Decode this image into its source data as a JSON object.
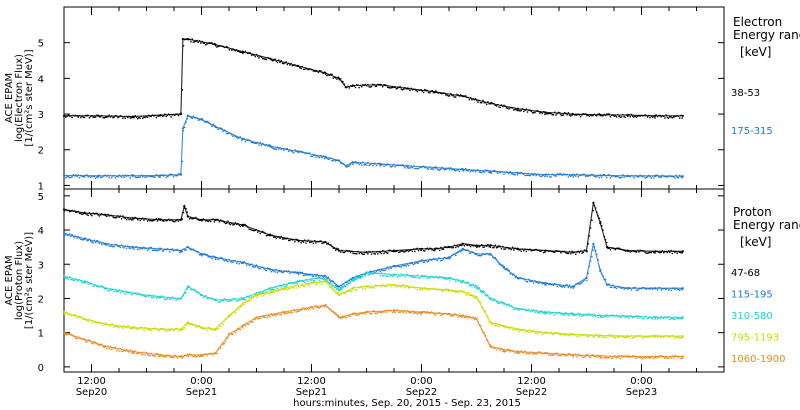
{
  "chart_data": [
    {
      "type": "scatter",
      "panel": "electron",
      "ylabel_lines": [
        "ACE EPAM",
        "log(Electron Flux)",
        "[1/(cm²s ster MeV)]"
      ],
      "ylim": [
        0.9,
        6.0
      ],
      "yticks": [
        1,
        2,
        3,
        4,
        5
      ],
      "legend_title_lines": [
        "Electron",
        "Energy range"
      ],
      "legend_unit": "[keV]",
      "series": [
        {
          "name": "38-53",
          "color": "#000000",
          "points": [
            [
              0,
              2.95
            ],
            [
              5,
              2.95
            ],
            [
              10,
              2.93
            ],
            [
              14,
              2.97
            ],
            [
              17,
              3.0
            ],
            [
              17.3,
              5.1
            ],
            [
              18,
              5.1
            ],
            [
              22,
              4.95
            ],
            [
              26,
              4.75
            ],
            [
              30,
              4.55
            ],
            [
              34,
              4.35
            ],
            [
              38,
              4.15
            ],
            [
              40,
              4.0
            ],
            [
              41,
              3.75
            ],
            [
              42,
              3.8
            ],
            [
              46,
              3.82
            ],
            [
              50,
              3.72
            ],
            [
              54,
              3.62
            ],
            [
              58,
              3.5
            ],
            [
              62,
              3.3
            ],
            [
              66,
              3.15
            ],
            [
              70,
              3.05
            ],
            [
              74,
              3.0
            ],
            [
              78,
              2.98
            ],
            [
              82,
              2.97
            ],
            [
              86,
              2.95
            ],
            [
              90,
              2.95
            ]
          ]
        },
        {
          "name": "175-315",
          "color": "#1f78d1",
          "points": [
            [
              0,
              1.28
            ],
            [
              5,
              1.27
            ],
            [
              10,
              1.27
            ],
            [
              14,
              1.28
            ],
            [
              17,
              1.3
            ],
            [
              17.3,
              2.6
            ],
            [
              18,
              2.95
            ],
            [
              20,
              2.85
            ],
            [
              22,
              2.65
            ],
            [
              26,
              2.3
            ],
            [
              30,
              2.1
            ],
            [
              34,
              1.95
            ],
            [
              38,
              1.8
            ],
            [
              40,
              1.7
            ],
            [
              41,
              1.55
            ],
            [
              42,
              1.65
            ],
            [
              46,
              1.6
            ],
            [
              50,
              1.55
            ],
            [
              54,
              1.5
            ],
            [
              58,
              1.45
            ],
            [
              62,
              1.4
            ],
            [
              66,
              1.35
            ],
            [
              70,
              1.3
            ],
            [
              74,
              1.3
            ],
            [
              78,
              1.28
            ],
            [
              82,
              1.27
            ],
            [
              86,
              1.27
            ],
            [
              90,
              1.26
            ]
          ]
        }
      ]
    },
    {
      "type": "scatter",
      "panel": "proton",
      "ylabel_lines": [
        "ACE EPAM",
        "log(Proton Flux)",
        "[1/(cm²s ster MeV)]"
      ],
      "ylim": [
        -0.15,
        5.2
      ],
      "yticks": [
        0,
        1,
        2,
        3,
        4,
        5
      ],
      "legend_title_lines": [
        "Proton",
        "Energy range"
      ],
      "legend_unit": "[keV]",
      "series": [
        {
          "name": "47-68",
          "color": "#000000",
          "points": [
            [
              0,
              4.6
            ],
            [
              3,
              4.5
            ],
            [
              6,
              4.45
            ],
            [
              10,
              4.35
            ],
            [
              14,
              4.3
            ],
            [
              17,
              4.3
            ],
            [
              17.5,
              4.7
            ],
            [
              18,
              4.4
            ],
            [
              20,
              4.3
            ],
            [
              22,
              4.3
            ],
            [
              26,
              4.15
            ],
            [
              30,
              3.85
            ],
            [
              34,
              3.7
            ],
            [
              38,
              3.65
            ],
            [
              40,
              3.4
            ],
            [
              44,
              3.35
            ],
            [
              48,
              3.4
            ],
            [
              52,
              3.45
            ],
            [
              54,
              3.45
            ],
            [
              56,
              3.5
            ],
            [
              58,
              3.6
            ],
            [
              60,
              3.55
            ],
            [
              62,
              3.55
            ],
            [
              66,
              3.45
            ],
            [
              70,
              3.4
            ],
            [
              74,
              3.35
            ],
            [
              76,
              3.4
            ],
            [
              77,
              4.8
            ],
            [
              78,
              4.2
            ],
            [
              79,
              3.5
            ],
            [
              82,
              3.4
            ],
            [
              86,
              3.38
            ],
            [
              90,
              3.38
            ]
          ]
        },
        {
          "name": "115-195",
          "color": "#1f78d1",
          "points": [
            [
              0,
              3.9
            ],
            [
              3,
              3.75
            ],
            [
              6,
              3.6
            ],
            [
              10,
              3.5
            ],
            [
              14,
              3.45
            ],
            [
              17,
              3.4
            ],
            [
              18,
              3.5
            ],
            [
              20,
              3.3
            ],
            [
              22,
              3.2
            ],
            [
              26,
              3.05
            ],
            [
              30,
              2.85
            ],
            [
              34,
              2.75
            ],
            [
              38,
              2.65
            ],
            [
              40,
              2.35
            ],
            [
              42,
              2.6
            ],
            [
              44,
              2.75
            ],
            [
              48,
              2.95
            ],
            [
              52,
              3.1
            ],
            [
              56,
              3.2
            ],
            [
              58,
              3.45
            ],
            [
              60,
              3.3
            ],
            [
              62,
              3.3
            ],
            [
              64,
              2.9
            ],
            [
              66,
              2.6
            ],
            [
              70,
              2.45
            ],
            [
              74,
              2.35
            ],
            [
              76,
              2.6
            ],
            [
              77,
              3.6
            ],
            [
              78,
              2.8
            ],
            [
              79,
              2.4
            ],
            [
              82,
              2.3
            ],
            [
              86,
              2.3
            ],
            [
              90,
              2.3
            ]
          ]
        },
        {
          "name": "310-580",
          "color": "#1dd3d3",
          "points": [
            [
              0,
              2.65
            ],
            [
              3,
              2.5
            ],
            [
              6,
              2.3
            ],
            [
              10,
              2.15
            ],
            [
              14,
              2.05
            ],
            [
              17,
              2.0
            ],
            [
              18,
              2.35
            ],
            [
              20,
              2.1
            ],
            [
              22,
              1.95
            ],
            [
              26,
              2.0
            ],
            [
              30,
              2.3
            ],
            [
              34,
              2.5
            ],
            [
              37,
              2.6
            ],
            [
              38,
              2.55
            ],
            [
              40,
              2.25
            ],
            [
              42,
              2.55
            ],
            [
              44,
              2.75
            ],
            [
              48,
              2.7
            ],
            [
              52,
              2.65
            ],
            [
              56,
              2.6
            ],
            [
              58,
              2.5
            ],
            [
              60,
              2.35
            ],
            [
              62,
              2.0
            ],
            [
              64,
              1.85
            ],
            [
              66,
              1.7
            ],
            [
              70,
              1.6
            ],
            [
              74,
              1.55
            ],
            [
              78,
              1.5
            ],
            [
              82,
              1.48
            ],
            [
              86,
              1.45
            ],
            [
              90,
              1.45
            ]
          ]
        },
        {
          "name": "795-1193",
          "color": "#c8dc00",
          "points": [
            [
              0,
              1.6
            ],
            [
              3,
              1.4
            ],
            [
              6,
              1.25
            ],
            [
              10,
              1.15
            ],
            [
              14,
              1.1
            ],
            [
              17,
              1.1
            ],
            [
              18,
              1.3
            ],
            [
              20,
              1.15
            ],
            [
              22,
              1.1
            ],
            [
              24,
              1.5
            ],
            [
              26,
              1.85
            ],
            [
              28,
              2.1
            ],
            [
              32,
              2.3
            ],
            [
              36,
              2.45
            ],
            [
              38,
              2.5
            ],
            [
              40,
              2.1
            ],
            [
              42,
              2.3
            ],
            [
              44,
              2.35
            ],
            [
              48,
              2.4
            ],
            [
              52,
              2.3
            ],
            [
              56,
              2.25
            ],
            [
              58,
              2.2
            ],
            [
              60,
              2.05
            ],
            [
              62,
              1.3
            ],
            [
              64,
              1.2
            ],
            [
              66,
              1.1
            ],
            [
              70,
              1.0
            ],
            [
              74,
              0.95
            ],
            [
              78,
              0.92
            ],
            [
              82,
              0.9
            ],
            [
              86,
              0.9
            ],
            [
              90,
              0.9
            ]
          ]
        },
        {
          "name": "1060-1900",
          "color": "#e8891e",
          "points": [
            [
              0,
              1.0
            ],
            [
              3,
              0.8
            ],
            [
              6,
              0.6
            ],
            [
              10,
              0.45
            ],
            [
              14,
              0.35
            ],
            [
              17,
              0.3
            ],
            [
              18,
              0.35
            ],
            [
              20,
              0.35
            ],
            [
              22,
              0.4
            ],
            [
              24,
              0.95
            ],
            [
              26,
              1.2
            ],
            [
              28,
              1.45
            ],
            [
              32,
              1.6
            ],
            [
              36,
              1.75
            ],
            [
              38,
              1.8
            ],
            [
              40,
              1.45
            ],
            [
              42,
              1.55
            ],
            [
              44,
              1.6
            ],
            [
              48,
              1.65
            ],
            [
              52,
              1.6
            ],
            [
              56,
              1.55
            ],
            [
              58,
              1.5
            ],
            [
              60,
              1.4
            ],
            [
              62,
              0.6
            ],
            [
              64,
              0.5
            ],
            [
              66,
              0.45
            ],
            [
              70,
              0.4
            ],
            [
              74,
              0.35
            ],
            [
              78,
              0.32
            ],
            [
              82,
              0.3
            ],
            [
              86,
              0.3
            ],
            [
              90,
              0.3
            ]
          ]
        }
      ]
    }
  ],
  "x_axis": {
    "xlim": [
      0,
      96
    ],
    "major_ticks": [
      {
        "x": 4,
        "time": "12:00",
        "date": "Sep20"
      },
      {
        "x": 20,
        "time": "0:00",
        "date": "Sep21"
      },
      {
        "x": 36,
        "time": "12:00",
        "date": "Sep21"
      },
      {
        "x": 52,
        "time": "0:00",
        "date": "Sep22"
      },
      {
        "x": 68,
        "time": "12:00",
        "date": "Sep22"
      },
      {
        "x": 84,
        "time": "0:00",
        "date": "Sep23"
      }
    ],
    "minor_every": 4,
    "label": "hours:minutes, Sep. 20, 2015 - Sep. 23, 2015"
  }
}
